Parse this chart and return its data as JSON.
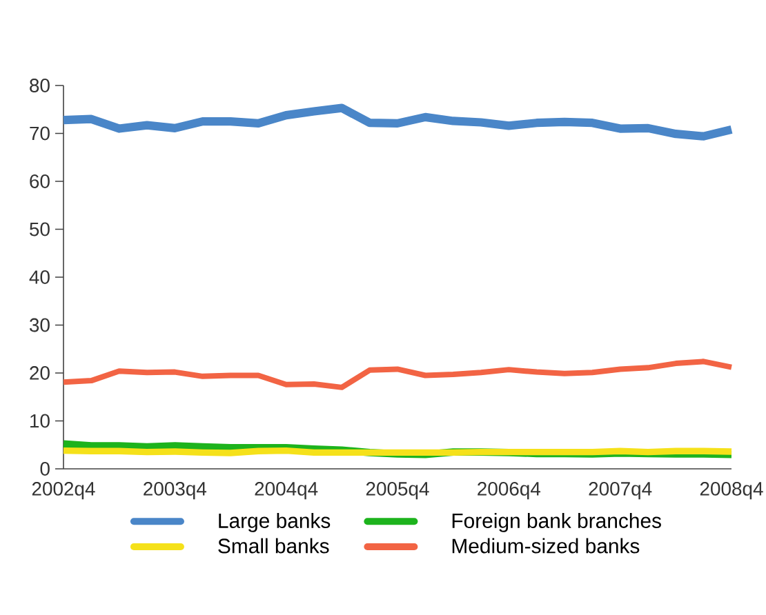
{
  "chart_data": {
    "type": "line",
    "categories": [
      "2002q4",
      null,
      null,
      null,
      "2003q4",
      null,
      null,
      null,
      "2004q4",
      null,
      null,
      null,
      "2005q4",
      null,
      null,
      null,
      "2006q4",
      null,
      null,
      null,
      "2007q4",
      null,
      null,
      null,
      "2008q4"
    ],
    "ylim": [
      0,
      80
    ],
    "yticks": [
      0,
      10,
      20,
      30,
      40,
      50,
      60,
      70,
      80
    ],
    "legend": "bottom",
    "grid": false,
    "marker": "none",
    "line_style": "solid",
    "series": [
      {
        "name": "Large banks",
        "color": "#4a86c8",
        "values": [
          72.8,
          73.0,
          71.0,
          71.7,
          71.1,
          72.5,
          72.5,
          72.1,
          73.8,
          74.6,
          75.3,
          72.2,
          72.1,
          73.4,
          72.6,
          72.3,
          71.6,
          72.2,
          72.4,
          72.2,
          71.0,
          71.1,
          69.9,
          69.4,
          70.8
        ]
      },
      {
        "name": "Foreign bank branches",
        "color": "#1db31d",
        "values": [
          5.2,
          4.8,
          4.8,
          4.6,
          4.8,
          4.6,
          4.4,
          4.4,
          4.4,
          4.1,
          3.9,
          3.4,
          3.1,
          3.0,
          3.5,
          3.5,
          3.4,
          3.2,
          3.2,
          3.1,
          3.3,
          3.2,
          3.1,
          3.1,
          3.0
        ]
      },
      {
        "name": "Small banks",
        "color": "#f5e11a",
        "values": [
          3.8,
          3.7,
          3.7,
          3.5,
          3.6,
          3.4,
          3.3,
          3.7,
          3.8,
          3.4,
          3.4,
          3.4,
          3.4,
          3.4,
          3.4,
          3.5,
          3.5,
          3.5,
          3.5,
          3.5,
          3.7,
          3.5,
          3.7,
          3.7,
          3.6
        ]
      },
      {
        "name": "Medium-sized banks",
        "color": "#f26444",
        "values": [
          18.1,
          18.4,
          20.4,
          20.1,
          20.2,
          19.3,
          19.5,
          19.5,
          17.6,
          17.7,
          17.0,
          20.6,
          20.8,
          19.5,
          19.7,
          20.1,
          20.7,
          20.2,
          19.9,
          20.1,
          20.8,
          21.1,
          22.0,
          22.4,
          21.2
        ]
      }
    ]
  }
}
